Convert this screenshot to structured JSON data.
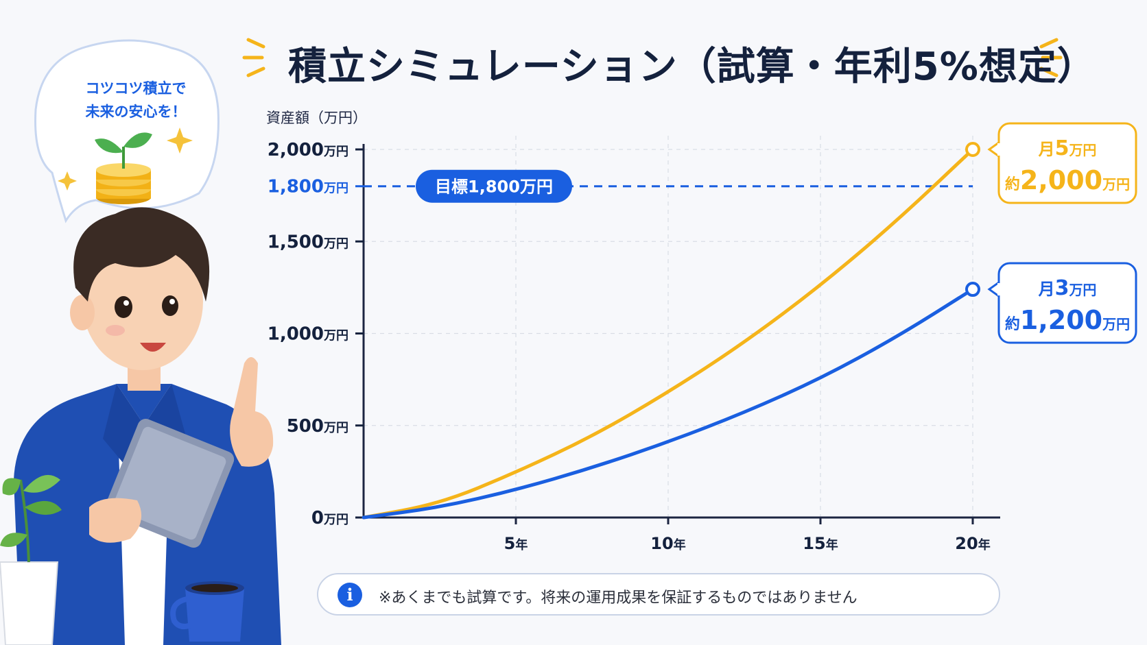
{
  "title": "積立シミュレーション（試算・年利5%想定）",
  "speech_bubble": {
    "line1": "コツコツ積立で",
    "line2": "未来の安心を！"
  },
  "note": {
    "icon": "info-icon",
    "text": "※あくまでも試算です。将来の運用成果を保証するものではありません"
  },
  "colors": {
    "accent_blue": "#1a5fe0",
    "accent_gold": "#f5b41a",
    "navy": "#14213d"
  },
  "chart_data": {
    "type": "line",
    "ylabel": "資産額（万円）",
    "xlabel": "",
    "xlim": [
      0,
      20
    ],
    "ylim": [
      0,
      2000
    ],
    "x_ticks": [
      {
        "value": 5,
        "label": "5年"
      },
      {
        "value": 10,
        "label": "10年"
      },
      {
        "value": 15,
        "label": "15年"
      },
      {
        "value": 20,
        "label": "20年"
      }
    ],
    "y_ticks": [
      {
        "value": 0,
        "num": "0",
        "unit": "万円",
        "highlight": false
      },
      {
        "value": 500,
        "num": "500",
        "unit": "万円",
        "highlight": false
      },
      {
        "value": 1000,
        "num": "1,000",
        "unit": "万円",
        "highlight": false
      },
      {
        "value": 1500,
        "num": "1,500",
        "unit": "万円",
        "highlight": false
      },
      {
        "value": 1800,
        "num": "1,800",
        "unit": "万円",
        "highlight": true
      },
      {
        "value": 2000,
        "num": "2,000",
        "unit": "万円",
        "highlight": false
      }
    ],
    "grid": true,
    "target": {
      "value": 1800,
      "label": "目標1,800万円"
    },
    "series": [
      {
        "key": "gold",
        "color": "#f5b41a",
        "x": [
          0,
          2.5,
          5,
          7.5,
          10,
          12.5,
          15,
          17.5,
          20
        ],
        "values": [
          0,
          75,
          245,
          440,
          680,
          950,
          1260,
          1610,
          2000
        ],
        "callout": {
          "top": "月",
          "top_num": "5",
          "top_unit": "万円",
          "bottom": "約",
          "bottom_num": "2,000",
          "bottom_unit": "万円"
        }
      },
      {
        "key": "blue",
        "color": "#1a5fe0",
        "x": [
          0,
          2.5,
          5,
          7.5,
          10,
          12.5,
          15,
          17.5,
          20
        ],
        "values": [
          0,
          55,
          150,
          270,
          410,
          570,
          755,
          980,
          1240
        ],
        "callout": {
          "top": "月",
          "top_num": "3",
          "top_unit": "万円",
          "bottom": "約",
          "bottom_num": "1,200",
          "bottom_unit": "万円"
        }
      }
    ]
  }
}
